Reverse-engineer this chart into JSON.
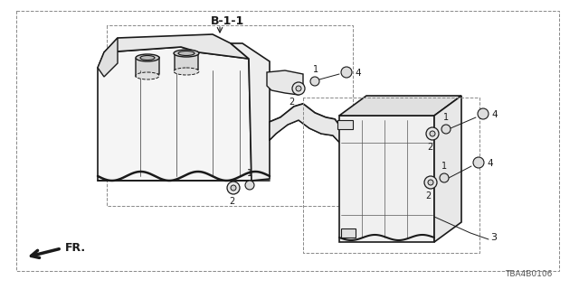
{
  "title": "B-1-1",
  "part_number": "TBA4B0106",
  "fr_label": "FR.",
  "bg": "#ffffff",
  "lc": "#1a1a1a",
  "dlc": "#888888",
  "glc": "#555555",
  "figsize": [
    6.4,
    3.2
  ],
  "dpi": 100
}
